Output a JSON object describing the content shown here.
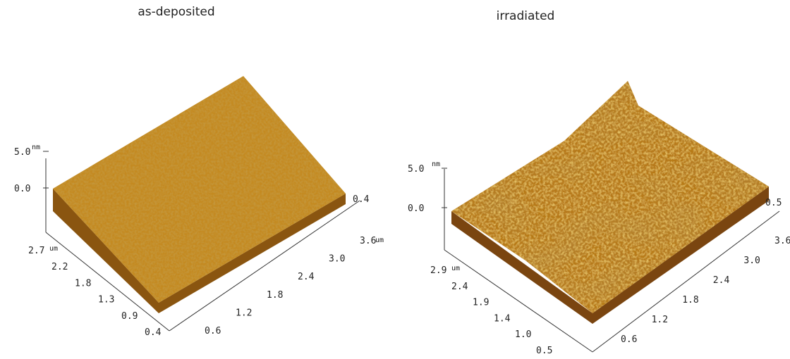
{
  "panels": [
    {
      "title": "as-deposited",
      "z_labels": [
        "5.0",
        "0.0"
      ],
      "z_unit": "nm",
      "y_labels": [
        "2.7",
        "2.2",
        "1.8",
        "1.3",
        "0.9",
        "0.4"
      ],
      "y_unit": "um",
      "x_labels": [
        "0.6",
        "1.2",
        "1.8",
        "2.4",
        "3.0",
        "3.6"
      ],
      "x_unit": "um",
      "back_label": "0.4"
    },
    {
      "title": "irradiated",
      "z_labels": [
        "5.0",
        "0.0"
      ],
      "z_unit": "nm",
      "y_labels": [
        "2.9",
        "2.4",
        "1.9",
        "1.4",
        "1.0",
        "0.5"
      ],
      "y_unit": "um",
      "x_labels": [
        "0.6",
        "1.2",
        "1.8",
        "2.4",
        "3.0",
        "3.6"
      ],
      "back_label": "0.5"
    }
  ]
}
